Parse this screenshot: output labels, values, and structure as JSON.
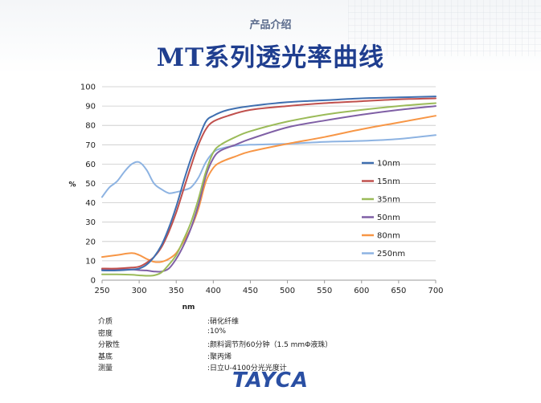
{
  "header": {
    "section_label": "产品介绍",
    "title": "MT系列透光率曲线"
  },
  "chart_data": {
    "type": "line",
    "xlabel": "nm",
    "ylabel": "%",
    "xlim": [
      250,
      700
    ],
    "ylim": [
      0,
      100
    ],
    "xticks": [
      250,
      300,
      350,
      400,
      450,
      500,
      550,
      600,
      650,
      700
    ],
    "yticks": [
      0,
      10,
      20,
      30,
      40,
      50,
      60,
      70,
      80,
      90,
      100
    ],
    "grid": "horizontal",
    "legend_position": "right",
    "series": [
      {
        "name": "10nm",
        "color": "#3f6fb0",
        "points": [
          [
            250,
            5
          ],
          [
            270,
            5
          ],
          [
            290,
            5.5
          ],
          [
            300,
            6
          ],
          [
            310,
            8
          ],
          [
            320,
            12
          ],
          [
            330,
            18
          ],
          [
            340,
            27
          ],
          [
            350,
            38
          ],
          [
            360,
            51
          ],
          [
            370,
            63
          ],
          [
            380,
            73
          ],
          [
            390,
            82
          ],
          [
            400,
            85
          ],
          [
            420,
            88
          ],
          [
            450,
            90
          ],
          [
            500,
            92
          ],
          [
            550,
            93
          ],
          [
            600,
            94
          ],
          [
            650,
            94.5
          ],
          [
            700,
            95
          ]
        ]
      },
      {
        "name": "15nm",
        "color": "#c0504d",
        "points": [
          [
            250,
            6
          ],
          [
            270,
            6
          ],
          [
            290,
            6.5
          ],
          [
            300,
            7
          ],
          [
            310,
            9
          ],
          [
            320,
            12
          ],
          [
            330,
            17
          ],
          [
            340,
            25
          ],
          [
            350,
            35
          ],
          [
            360,
            47
          ],
          [
            370,
            59
          ],
          [
            380,
            70
          ],
          [
            390,
            78
          ],
          [
            400,
            82
          ],
          [
            420,
            85
          ],
          [
            450,
            88
          ],
          [
            500,
            90
          ],
          [
            550,
            91.5
          ],
          [
            600,
            92.5
          ],
          [
            650,
            93.5
          ],
          [
            700,
            94
          ]
        ]
      },
      {
        "name": "35nm",
        "color": "#9bbb59",
        "points": [
          [
            250,
            3
          ],
          [
            270,
            3
          ],
          [
            290,
            2.8
          ],
          [
            300,
            2.5
          ],
          [
            310,
            2.3
          ],
          [
            320,
            2.5
          ],
          [
            330,
            4
          ],
          [
            340,
            8
          ],
          [
            350,
            13
          ],
          [
            360,
            21
          ],
          [
            370,
            30
          ],
          [
            380,
            42
          ],
          [
            390,
            56
          ],
          [
            400,
            66
          ],
          [
            410,
            70
          ],
          [
            430,
            74
          ],
          [
            450,
            77
          ],
          [
            500,
            82
          ],
          [
            550,
            85.5
          ],
          [
            600,
            88
          ],
          [
            650,
            90
          ],
          [
            700,
            91.5
          ]
        ]
      },
      {
        "name": "50nm",
        "color": "#7f5fa5",
        "points": [
          [
            250,
            5.5
          ],
          [
            270,
            5.5
          ],
          [
            290,
            5.5
          ],
          [
            300,
            5.2
          ],
          [
            310,
            5
          ],
          [
            320,
            4.5
          ],
          [
            330,
            4.5
          ],
          [
            340,
            6
          ],
          [
            350,
            11
          ],
          [
            360,
            18
          ],
          [
            370,
            27
          ],
          [
            380,
            39
          ],
          [
            390,
            54
          ],
          [
            400,
            63
          ],
          [
            410,
            67
          ],
          [
            430,
            70
          ],
          [
            450,
            73
          ],
          [
            500,
            79
          ],
          [
            550,
            82.5
          ],
          [
            600,
            85.5
          ],
          [
            650,
            88
          ],
          [
            700,
            90
          ]
        ]
      },
      {
        "name": "80nm",
        "color": "#f79646",
        "points": [
          [
            250,
            12
          ],
          [
            270,
            13
          ],
          [
            290,
            14
          ],
          [
            300,
            13
          ],
          [
            310,
            11
          ],
          [
            320,
            9.5
          ],
          [
            330,
            9.5
          ],
          [
            340,
            11
          ],
          [
            350,
            14
          ],
          [
            360,
            20
          ],
          [
            370,
            27
          ],
          [
            380,
            37
          ],
          [
            390,
            51
          ],
          [
            400,
            58
          ],
          [
            410,
            61
          ],
          [
            430,
            64
          ],
          [
            450,
            66.5
          ],
          [
            500,
            70.5
          ],
          [
            550,
            74
          ],
          [
            600,
            78
          ],
          [
            650,
            81.5
          ],
          [
            700,
            85
          ]
        ]
      },
      {
        "name": "250nm",
        "color": "#8db3e2",
        "points": [
          [
            250,
            43
          ],
          [
            260,
            48
          ],
          [
            270,
            51
          ],
          [
            280,
            56
          ],
          [
            290,
            60
          ],
          [
            300,
            61
          ],
          [
            310,
            57
          ],
          [
            320,
            50
          ],
          [
            330,
            47
          ],
          [
            340,
            45
          ],
          [
            350,
            45.5
          ],
          [
            360,
            46.5
          ],
          [
            370,
            48
          ],
          [
            380,
            53
          ],
          [
            390,
            61
          ],
          [
            400,
            66
          ],
          [
            410,
            68
          ],
          [
            430,
            69.5
          ],
          [
            450,
            70
          ],
          [
            500,
            70.5
          ],
          [
            550,
            71.5
          ],
          [
            600,
            72
          ],
          [
            650,
            73
          ],
          [
            700,
            75
          ]
        ]
      }
    ]
  },
  "properties": [
    {
      "label": "介质",
      "value": ":硝化纤维"
    },
    {
      "label": "密度",
      "value": ":10%"
    },
    {
      "label": "分散性",
      "value": ":颜料调节剂60分钟（1.5 mmΦ液珠）"
    },
    {
      "label": "基底",
      "value": ":聚丙烯"
    },
    {
      "label": "测量",
      "value": ":日立U-4100分光光度计"
    }
  ],
  "logo": "TAYCA"
}
